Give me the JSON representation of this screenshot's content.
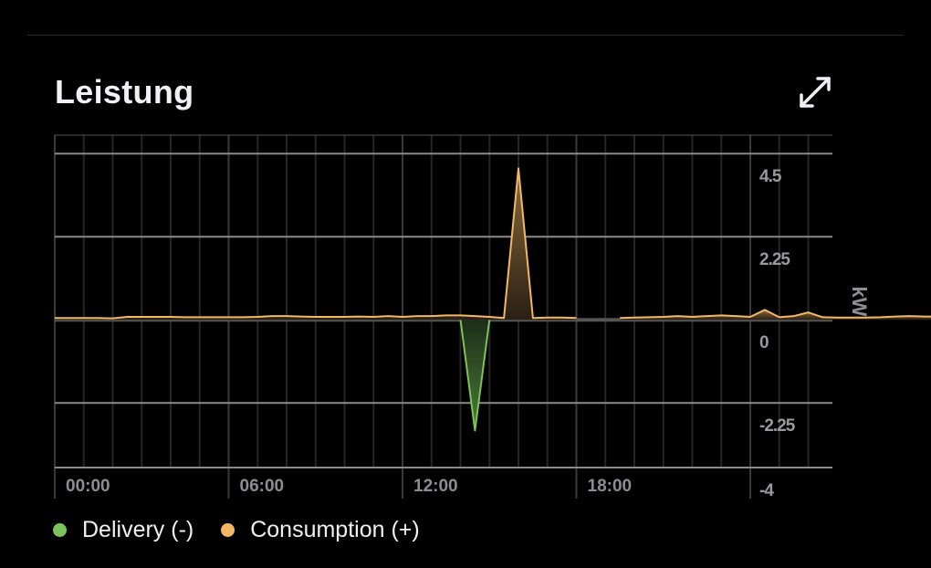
{
  "card": {
    "title": "Leistung",
    "expand_icon": "expand-arrows-icon"
  },
  "chart_data": {
    "type": "area",
    "title": "Leistung",
    "ylabel": "kW",
    "ylim": [
      -4,
      5
    ],
    "yticks": [
      4.5,
      2.25,
      0,
      -2.25,
      -4
    ],
    "ytick_labels": [
      "4.5",
      "2.25",
      "0",
      "-2.25",
      "-4"
    ],
    "xlim_hours": [
      0,
      27
    ],
    "xticks_hours": [
      0,
      6,
      12,
      18,
      24
    ],
    "xtick_labels": [
      "00:00",
      "06:00",
      "12:00",
      "18:00",
      ""
    ],
    "grid": true,
    "legend_placement": "bottom-left",
    "x_interval_minutes": 30,
    "series": [
      {
        "name": "Delivery (-)",
        "color": "#7cc35a",
        "values": [
          null,
          null,
          null,
          null,
          null,
          null,
          null,
          null,
          null,
          null,
          null,
          null,
          null,
          null,
          null,
          null,
          null,
          null,
          null,
          null,
          null,
          null,
          null,
          null,
          null,
          null,
          null,
          null,
          0,
          -3.0,
          0,
          null,
          null,
          null,
          null,
          null,
          null,
          null,
          null,
          null,
          null,
          null,
          null,
          null,
          null,
          null,
          null,
          null
        ]
      },
      {
        "name": "Consumption (+)",
        "color": "#f2b866",
        "values": [
          0.05,
          0.05,
          0.05,
          0.05,
          0.04,
          0.08,
          0.08,
          0.08,
          0.08,
          0.07,
          0.07,
          0.07,
          0.07,
          0.07,
          0.08,
          0.1,
          0.1,
          0.09,
          0.08,
          0.08,
          0.08,
          0.09,
          0.08,
          0.1,
          0.08,
          0.1,
          0.1,
          0.12,
          0.12,
          0.1,
          0.08,
          0.05,
          4.1,
          0.05,
          0.06,
          0.06,
          0.05,
          null,
          null,
          0.05,
          0.06,
          0.07,
          0.08,
          0.1,
          0.08,
          0.1,
          0.12,
          0.1,
          0.08,
          0.27,
          0.07,
          0.1,
          0.2,
          0.07,
          0.06,
          0.06,
          0.06,
          0.07,
          0.09,
          0.1,
          0.09,
          0.09,
          0.08,
          0.1
        ]
      }
    ]
  }
}
